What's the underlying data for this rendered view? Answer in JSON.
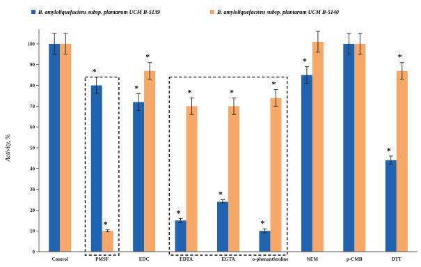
{
  "chart_data": {
    "type": "bar",
    "title": "",
    "xlabel": "",
    "ylabel": "Activity, %",
    "ylim": [
      0,
      105
    ],
    "yticks": [
      0,
      10,
      20,
      30,
      40,
      50,
      60,
      70,
      80,
      90,
      100
    ],
    "grid": false,
    "legend_position": "top",
    "categories": [
      "Control",
      "PMSF",
      "EDC",
      "EDTA",
      "EGTA",
      "o-phenanthroline",
      "NEM",
      "p-CMB",
      "DTT"
    ],
    "series": [
      {
        "name": "B. amyloliquefaciens subsp. plantarum UCM B-5139",
        "color": "#1f63b1",
        "values": [
          100,
          80,
          72,
          15,
          24,
          10,
          85,
          100,
          44
        ],
        "errors": [
          5,
          4,
          4,
          1,
          1,
          1,
          4,
          5,
          2
        ],
        "significant": [
          false,
          true,
          true,
          true,
          true,
          true,
          true,
          false,
          true
        ]
      },
      {
        "name": "B. amyloliquefaciens subsp. plantarum UCM B-5140",
        "color": "#f7a866",
        "values": [
          100,
          10,
          87,
          70,
          70,
          74,
          101,
          100,
          87
        ],
        "errors": [
          5,
          0.5,
          4,
          4,
          4,
          4,
          5,
          5,
          4
        ],
        "significant": [
          false,
          true,
          true,
          true,
          true,
          true,
          false,
          false,
          true
        ]
      }
    ],
    "significance_marker": "*",
    "annotations": {
      "dashed_boxes": [
        {
          "categories": [
            "PMSF"
          ]
        },
        {
          "categories": [
            "EDTA",
            "EGTA",
            "o-phenanthroline"
          ]
        }
      ]
    }
  }
}
